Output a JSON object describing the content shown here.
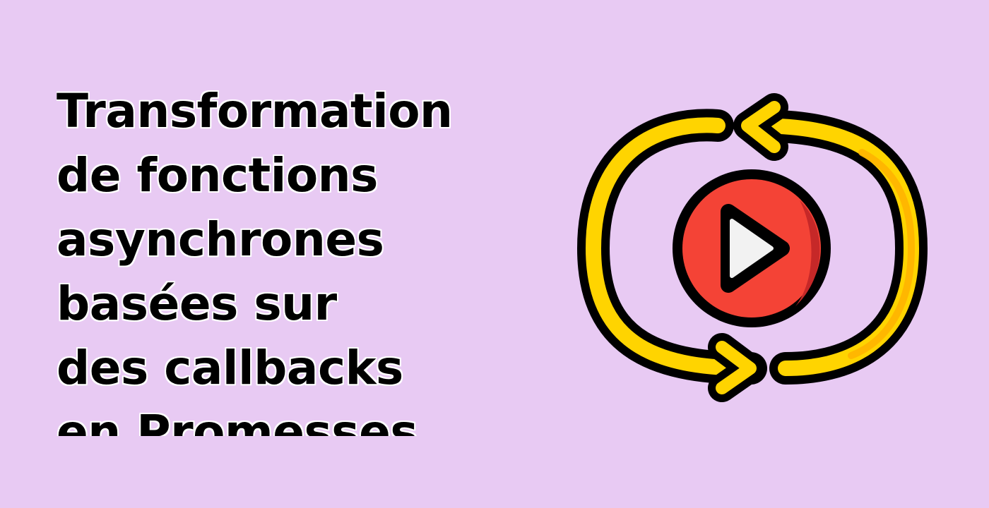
{
  "title": {
    "lines": [
      "Transformation",
      "de fonctions",
      "asynchrones",
      "basées sur",
      "des callbacks",
      "en Promesses"
    ]
  },
  "illustration": {
    "icon": "sync-play-icon",
    "arrow_color": "#FFD400",
    "arrow_shadow_color": "#FFB400",
    "play_circle_color": "#F44336",
    "play_circle_shadow_color": "#C62828",
    "play_triangle_color": "#F2F2F2",
    "outline_color": "#000000"
  },
  "background_color": "#E8CAF3"
}
